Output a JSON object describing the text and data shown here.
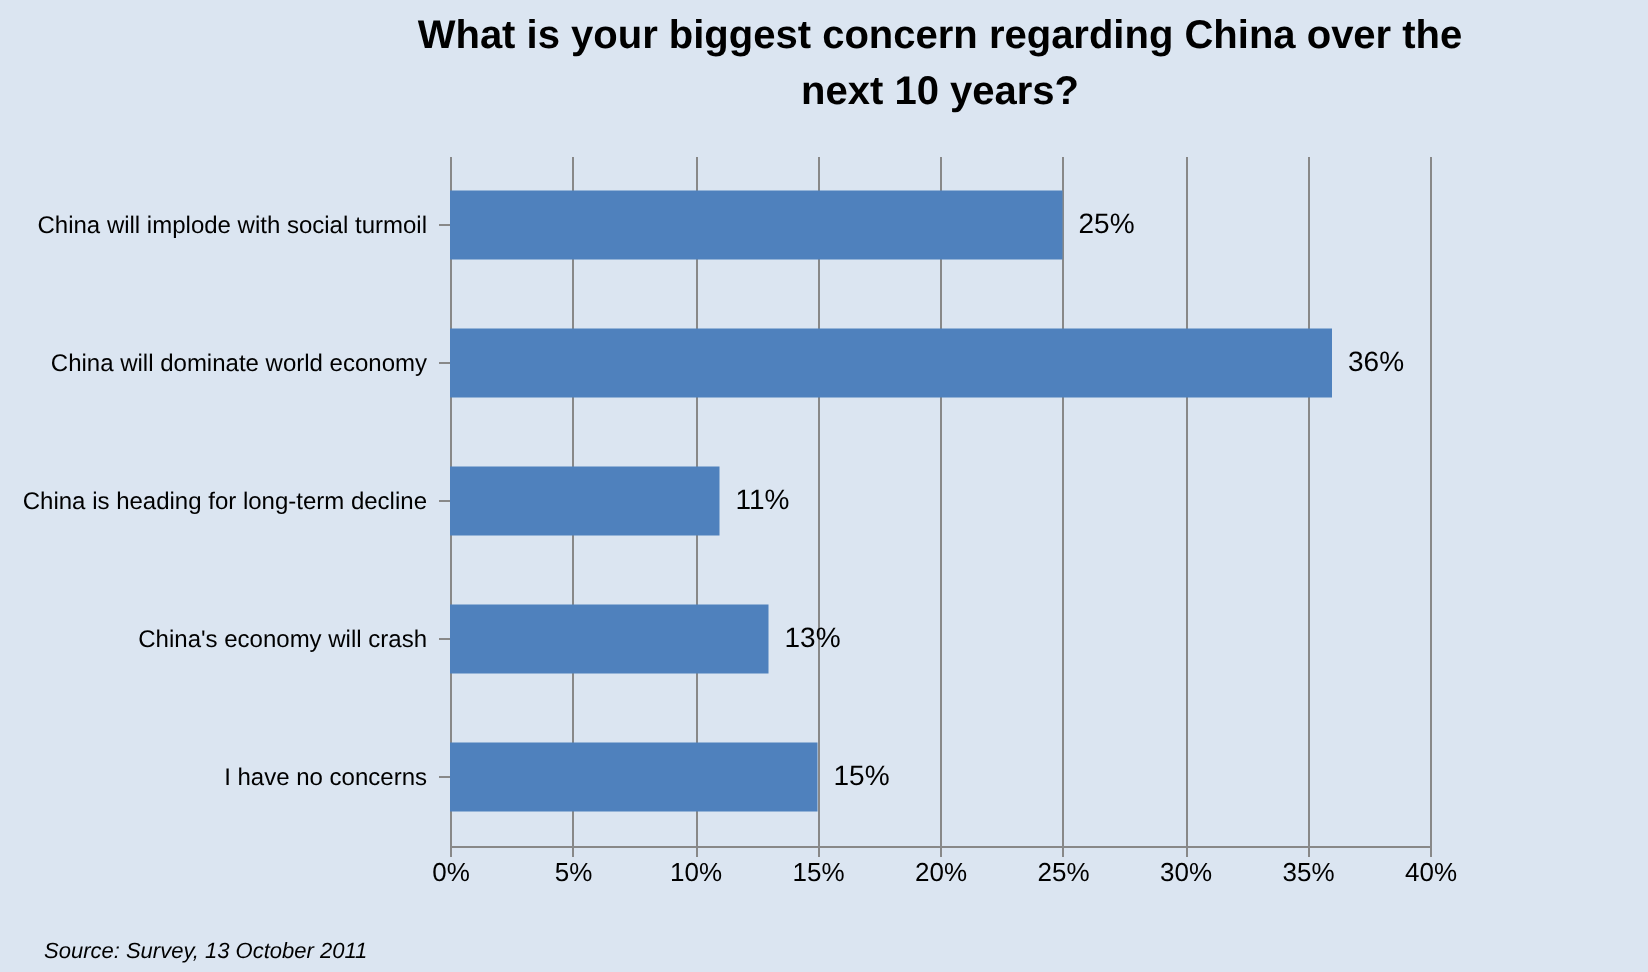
{
  "chart_data": {
    "type": "bar",
    "orientation": "horizontal",
    "title": "What is your biggest concern regarding China over the next 10 years?",
    "categories": [
      "China will implode with social turmoil",
      "China will dominate  world economy",
      "China is heading for long-term decline",
      "China's economy will crash",
      "I have no concerns"
    ],
    "values": [
      25,
      36,
      11,
      13,
      15
    ],
    "value_labels": [
      "25%",
      "36%",
      "11%",
      "13%",
      "15%"
    ],
    "color": "#4f81bd",
    "xlim": [
      0,
      40
    ],
    "xticks": [
      {
        "value": 0,
        "label": "0%"
      },
      {
        "value": 5,
        "label": "5%"
      },
      {
        "value": 10,
        "label": "10%"
      },
      {
        "value": 15,
        "label": "15%"
      },
      {
        "value": 20,
        "label": "20%"
      },
      {
        "value": 25,
        "label": "25%"
      },
      {
        "value": 30,
        "label": "30%"
      },
      {
        "value": 35,
        "label": "35%"
      },
      {
        "value": 40,
        "label": "40%"
      }
    ],
    "grid": "x",
    "annotations": [
      "Source: Survey, 13 October 2011"
    ]
  }
}
